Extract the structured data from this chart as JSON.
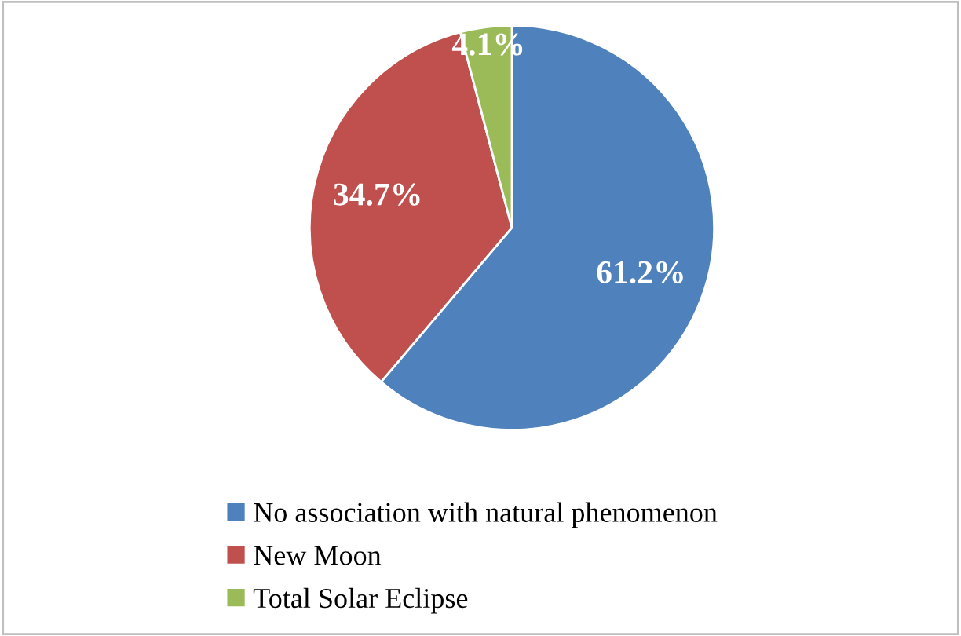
{
  "chart_data": {
    "type": "pie",
    "categories": [
      "No association with natural phenomenon",
      "New Moon",
      "Total Solar Eclipse"
    ],
    "values": [
      61.2,
      34.7,
      4.1
    ],
    "colors": [
      "#4f81bd",
      "#c0504d",
      "#9bbb59"
    ],
    "value_labels": [
      "61.2%",
      "34.7%",
      "4.1%"
    ],
    "legend": "bottom"
  }
}
